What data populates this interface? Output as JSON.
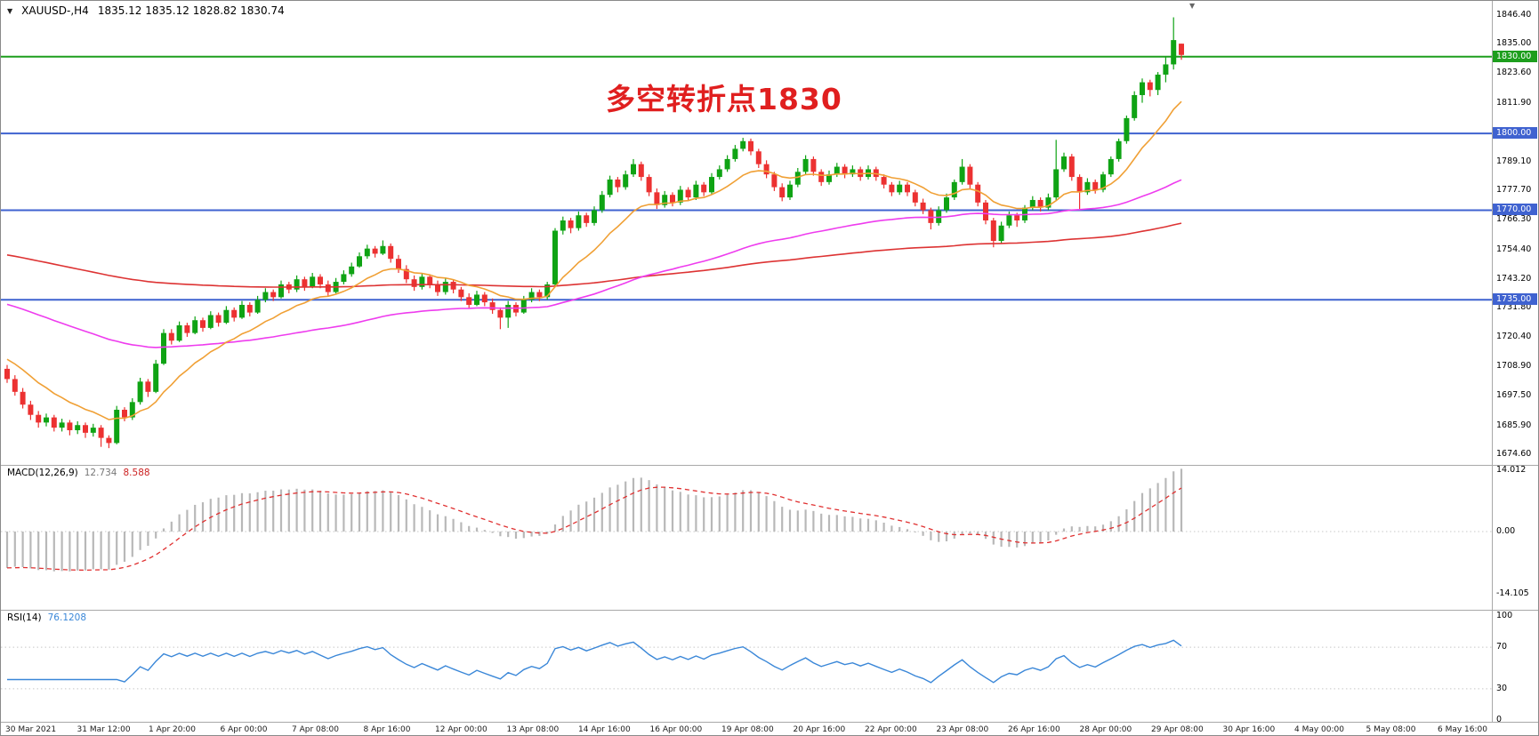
{
  "window": {
    "symbol_period": "XAUUSD-,H4",
    "ohlc_quote": "1835.12 1835.12 1828.82 1830.74"
  },
  "annotation": {
    "text": "多空转折点1830",
    "color": "#e01f1f"
  },
  "panels": {
    "macd": {
      "label": "MACD(12,26,9)",
      "value_main": "12.734",
      "value_signal": "8.588"
    },
    "rsi": {
      "label": "RSI(14)",
      "value": "76.1208"
    }
  },
  "colors": {
    "background": "#ffffff",
    "candle_up": "#0fa314",
    "candle_down": "#ec3131",
    "macd_hist": "#b8b8b8",
    "macd_signal": "#e03030",
    "rsi_line": "#3a87d8",
    "separator": "#a8a8a8",
    "grid": "#c8c8c8",
    "axis_text": "#000000"
  },
  "chart_data": {
    "type": "candlestick",
    "symbol": "XAUUSD-",
    "timeframe": "H4",
    "ylim": [
      1673,
      1848
    ],
    "price_ticks": [
      {
        "text": "1846.40",
        "value": 1846.4
      },
      {
        "text": "1835.00",
        "value": 1835.0
      },
      {
        "text": "1823.60",
        "value": 1823.6
      },
      {
        "text": "1811.90",
        "value": 1811.9
      },
      {
        "text": "1789.10",
        "value": 1789.1
      },
      {
        "text": "1777.70",
        "value": 1777.7
      },
      {
        "text": "1766.30",
        "value": 1766.3
      },
      {
        "text": "1754.40",
        "value": 1754.4
      },
      {
        "text": "1743.20",
        "value": 1743.2
      },
      {
        "text": "1731.80",
        "value": 1731.8
      },
      {
        "text": "1720.40",
        "value": 1720.4
      },
      {
        "text": "1708.90",
        "value": 1708.9
      },
      {
        "text": "1697.50",
        "value": 1697.5
      },
      {
        "text": "1685.90",
        "value": 1685.9
      },
      {
        "text": "1674.60",
        "value": 1674.6
      }
    ],
    "horizontal_lines": [
      {
        "label": "1830.00",
        "price": 1830,
        "color": "#1d9e1d"
      },
      {
        "label": "1800.00",
        "price": 1800,
        "color": "#3f62d0"
      },
      {
        "label": "1770.00",
        "price": 1770,
        "color": "#3f62d0"
      },
      {
        "label": "1735.00",
        "price": 1735,
        "color": "#3f62d0"
      }
    ],
    "candles": [
      [
        1708,
        1709.5,
        1702.5,
        1704
      ],
      [
        1704,
        1705.5,
        1697.5,
        1699
      ],
      [
        1699,
        1700.5,
        1692.5,
        1694
      ],
      [
        1694,
        1695.5,
        1688,
        1690
      ],
      [
        1690,
        1691.5,
        1685,
        1687
      ],
      [
        1687,
        1690.5,
        1685.5,
        1689
      ],
      [
        1689,
        1690,
        1683.5,
        1685
      ],
      [
        1685,
        1688.5,
        1683.5,
        1687
      ],
      [
        1687,
        1688,
        1682,
        1684
      ],
      [
        1684,
        1687.5,
        1682.5,
        1686
      ],
      [
        1686,
        1687,
        1681,
        1683
      ],
      [
        1683,
        1686.5,
        1681.5,
        1685
      ],
      [
        1685,
        1686,
        1677.5,
        1681
      ],
      [
        1681,
        1682,
        1677,
        1679
      ],
      [
        1679,
        1693.5,
        1678.5,
        1692
      ],
      [
        1692,
        1693,
        1687.5,
        1689
      ],
      [
        1689,
        1696.5,
        1688,
        1695
      ],
      [
        1695,
        1704.5,
        1694,
        1703
      ],
      [
        1703,
        1704,
        1697,
        1699
      ],
      [
        1699,
        1711.5,
        1698.5,
        1710
      ],
      [
        1710,
        1723.5,
        1709.5,
        1722
      ],
      [
        1722,
        1723.5,
        1717.5,
        1719
      ],
      [
        1719,
        1726.5,
        1718.5,
        1725
      ],
      [
        1725,
        1726,
        1720.5,
        1722
      ],
      [
        1722,
        1728.5,
        1721.5,
        1727
      ],
      [
        1727,
        1728,
        1722.5,
        1724
      ],
      [
        1724,
        1730.5,
        1723.5,
        1729
      ],
      [
        1729,
        1730,
        1724.5,
        1726
      ],
      [
        1726,
        1732.5,
        1725.5,
        1731
      ],
      [
        1731,
        1732,
        1726.5,
        1728
      ],
      [
        1728,
        1734.5,
        1727.5,
        1733
      ],
      [
        1733,
        1734,
        1728.5,
        1730
      ],
      [
        1730,
        1736.5,
        1729.5,
        1735
      ],
      [
        1735,
        1739.5,
        1734,
        1738
      ],
      [
        1738,
        1739,
        1734.5,
        1736
      ],
      [
        1736,
        1742.5,
        1735.5,
        1741
      ],
      [
        1741,
        1742,
        1737.5,
        1739
      ],
      [
        1739,
        1744.5,
        1738,
        1743
      ],
      [
        1743,
        1744,
        1738.5,
        1740
      ],
      [
        1740,
        1745.5,
        1739.5,
        1744
      ],
      [
        1744,
        1745,
        1739.5,
        1741
      ],
      [
        1741,
        1742.5,
        1736.5,
        1738
      ],
      [
        1738,
        1743.5,
        1737.5,
        1742
      ],
      [
        1742,
        1746.5,
        1741,
        1745
      ],
      [
        1745,
        1749.5,
        1744,
        1748
      ],
      [
        1748,
        1753.5,
        1747.5,
        1752
      ],
      [
        1752,
        1756.5,
        1751,
        1755
      ],
      [
        1755,
        1756,
        1751.5,
        1753
      ],
      [
        1753,
        1758.2,
        1752.5,
        1756
      ],
      [
        1756,
        1757,
        1749.5,
        1751
      ],
      [
        1751,
        1752.5,
        1745.5,
        1747
      ],
      [
        1747,
        1748.5,
        1741.5,
        1743
      ],
      [
        1743,
        1744.5,
        1738.5,
        1740
      ],
      [
        1740,
        1745.5,
        1739,
        1744
      ],
      [
        1744,
        1745,
        1739.5,
        1741
      ],
      [
        1741,
        1742.5,
        1736.5,
        1738
      ],
      [
        1738,
        1743.5,
        1737,
        1742
      ],
      [
        1742,
        1743,
        1737.5,
        1739
      ],
      [
        1739,
        1740,
        1734.5,
        1736
      ],
      [
        1736,
        1737.5,
        1731.5,
        1733
      ],
      [
        1733,
        1738.5,
        1732.5,
        1737
      ],
      [
        1737,
        1738,
        1732.5,
        1734
      ],
      [
        1734,
        1735.5,
        1729.5,
        1731
      ],
      [
        1731,
        1732,
        1723.5,
        1728
      ],
      [
        1728,
        1734.5,
        1724,
        1733
      ],
      [
        1733,
        1734,
        1728.5,
        1730
      ],
      [
        1730,
        1736.5,
        1729.5,
        1735
      ],
      [
        1735,
        1739.5,
        1734,
        1738
      ],
      [
        1738,
        1739,
        1734.5,
        1736
      ],
      [
        1736,
        1742,
        1735,
        1741
      ],
      [
        1741,
        1763,
        1740,
        1762
      ],
      [
        1762,
        1767.5,
        1760.5,
        1766
      ],
      [
        1766,
        1767,
        1761,
        1763
      ],
      [
        1763,
        1769.5,
        1762,
        1768
      ],
      [
        1768,
        1769,
        1763.5,
        1765
      ],
      [
        1765,
        1771.5,
        1764,
        1770
      ],
      [
        1770,
        1777.5,
        1769,
        1776
      ],
      [
        1776,
        1783.5,
        1775,
        1782
      ],
      [
        1782,
        1783,
        1777,
        1779
      ],
      [
        1779,
        1785.5,
        1778,
        1784
      ],
      [
        1784,
        1790,
        1783,
        1788
      ],
      [
        1788,
        1789,
        1781.5,
        1783
      ],
      [
        1783,
        1784,
        1775.5,
        1777
      ],
      [
        1777,
        1778.5,
        1770.5,
        1772
      ],
      [
        1772,
        1777.5,
        1771,
        1776
      ],
      [
        1776,
        1777,
        1771.5,
        1773
      ],
      [
        1773,
        1779.5,
        1772,
        1778
      ],
      [
        1778,
        1779,
        1773.5,
        1775
      ],
      [
        1775,
        1781.5,
        1774,
        1780
      ],
      [
        1780,
        1781,
        1775.5,
        1777
      ],
      [
        1777,
        1784.5,
        1776,
        1783
      ],
      [
        1783,
        1787.5,
        1782,
        1786
      ],
      [
        1786,
        1791.5,
        1785,
        1790
      ],
      [
        1790,
        1795.5,
        1789,
        1794
      ],
      [
        1794,
        1798.3,
        1793,
        1797
      ],
      [
        1797,
        1798,
        1791.5,
        1793
      ],
      [
        1793,
        1794,
        1786.5,
        1788
      ],
      [
        1788,
        1789.5,
        1782.5,
        1784
      ],
      [
        1784,
        1785,
        1777.5,
        1779
      ],
      [
        1779,
        1780.5,
        1773.5,
        1775
      ],
      [
        1775,
        1781.5,
        1774,
        1780
      ],
      [
        1780,
        1786.5,
        1779,
        1785
      ],
      [
        1785,
        1791.5,
        1784,
        1790
      ],
      [
        1790,
        1791,
        1783.5,
        1785
      ],
      [
        1785,
        1786,
        1779.5,
        1781
      ],
      [
        1781,
        1785.5,
        1780,
        1784
      ],
      [
        1784,
        1788.5,
        1783,
        1787
      ],
      [
        1787,
        1788,
        1782.5,
        1784
      ],
      [
        1784,
        1787.5,
        1783,
        1786
      ],
      [
        1786,
        1787,
        1781.5,
        1783
      ],
      [
        1783,
        1787.5,
        1782,
        1786
      ],
      [
        1786,
        1787,
        1781.5,
        1783
      ],
      [
        1783,
        1784,
        1778.5,
        1780
      ],
      [
        1780,
        1781,
        1775.5,
        1777
      ],
      [
        1777,
        1781.5,
        1776,
        1780
      ],
      [
        1780,
        1781,
        1775.5,
        1777
      ],
      [
        1777,
        1778,
        1771.5,
        1773
      ],
      [
        1773,
        1774.5,
        1768.5,
        1770
      ],
      [
        1770,
        1771,
        1762.5,
        1765
      ],
      [
        1765,
        1771.5,
        1764,
        1770
      ],
      [
        1770,
        1776.5,
        1769,
        1775
      ],
      [
        1775,
        1782,
        1774,
        1781
      ],
      [
        1781,
        1790,
        1780,
        1787
      ],
      [
        1787,
        1788,
        1778.5,
        1780
      ],
      [
        1780,
        1781,
        1771.5,
        1773
      ],
      [
        1773,
        1774,
        1764.5,
        1766
      ],
      [
        1766,
        1767,
        1755.5,
        1758
      ],
      [
        1758,
        1765.5,
        1757,
        1764
      ],
      [
        1764,
        1769.5,
        1763,
        1768
      ],
      [
        1768,
        1769,
        1763.5,
        1766
      ],
      [
        1766,
        1772,
        1765,
        1771
      ],
      [
        1771,
        1775.5,
        1770,
        1774
      ],
      [
        1774,
        1775,
        1769.5,
        1771
      ],
      [
        1771,
        1776.5,
        1770,
        1775
      ],
      [
        1775,
        1797.5,
        1774,
        1786
      ],
      [
        1786,
        1792.5,
        1785,
        1791
      ],
      [
        1791,
        1792,
        1781.5,
        1783
      ],
      [
        1783,
        1784,
        1770.5,
        1777
      ],
      [
        1777,
        1782.5,
        1776,
        1781
      ],
      [
        1781,
        1782,
        1776.5,
        1778
      ],
      [
        1778,
        1785,
        1777,
        1784
      ],
      [
        1784,
        1791,
        1783,
        1790
      ],
      [
        1790,
        1798,
        1789,
        1797
      ],
      [
        1797,
        1807,
        1796,
        1806
      ],
      [
        1806,
        1816.5,
        1805,
        1815
      ],
      [
        1815,
        1821.5,
        1812,
        1820
      ],
      [
        1820,
        1821,
        1814.5,
        1817
      ],
      [
        1817,
        1824,
        1815,
        1823
      ],
      [
        1823,
        1830,
        1820,
        1827
      ],
      [
        1827,
        1845.4,
        1825,
        1836.5
      ],
      [
        1835.1,
        1835.1,
        1828.8,
        1830.7
      ]
    ],
    "overlays": [
      {
        "name": "ma-slow-red",
        "period": 200,
        "seed": 1753,
        "color": "#dd3333"
      },
      {
        "name": "ma-mid-magenta",
        "period": 75,
        "seed": 1734,
        "color": "#ee3cee"
      },
      {
        "name": "ma-fast-orange",
        "period": 13,
        "seed": 1713,
        "color": "#f0a035"
      }
    ],
    "macd": {
      "fast": 12,
      "slow": 26,
      "signal": 9,
      "seed_fast": 1703,
      "seed_slow": 1712,
      "ticks": [
        {
          "text": "14.012",
          "value": 14.012
        },
        {
          "text": "0.00",
          "value": 0
        },
        {
          "text": "-14.105",
          "value": -14.105
        }
      ]
    },
    "rsi": {
      "period": 14,
      "ticks": [
        {
          "text": "100",
          "value": 100
        },
        {
          "text": "70",
          "value": 70
        },
        {
          "text": "30",
          "value": 30
        },
        {
          "text": "0",
          "value": 0
        }
      ]
    },
    "time_labels": [
      "30 Mar 2021",
      "31 Mar 12:00",
      "1 Apr 20:00",
      "6 Apr 00:00",
      "7 Apr 08:00",
      "8 Apr 16:00",
      "12 Apr 00:00",
      "13 Apr 08:00",
      "14 Apr 16:00",
      "16 Apr 00:00",
      "19 Apr 08:00",
      "20 Apr 16:00",
      "22 Apr 00:00",
      "23 Apr 08:00",
      "26 Apr 16:00",
      "28 Apr 00:00",
      "29 Apr 08:00",
      "30 Apr 16:00",
      "4 May 00:00",
      "5 May 08:00",
      "6 May 16:00"
    ]
  }
}
